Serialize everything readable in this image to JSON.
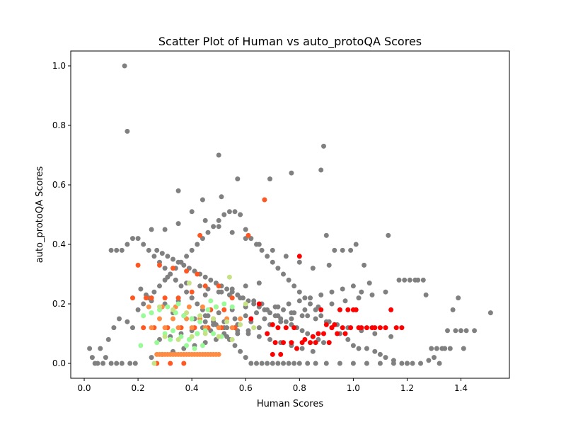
{
  "chart_data": {
    "type": "scatter",
    "title": "Scatter Plot of Human vs auto_protoQA Scores",
    "xlabel": "Human Scores",
    "ylabel": "auto_protoQA Scores",
    "xlim": [
      -0.05,
      1.58
    ],
    "ylim": [
      -0.05,
      1.05
    ],
    "xticks": [
      0.0,
      0.2,
      0.4,
      0.6,
      0.8,
      1.0,
      1.2,
      1.4
    ],
    "xtick_labels": [
      "0.0",
      "0.2",
      "0.4",
      "0.6",
      "0.8",
      "1.0",
      "1.2",
      "1.4"
    ],
    "yticks": [
      0.0,
      0.2,
      0.4,
      0.6,
      0.8,
      1.0
    ],
    "ytick_labels": [
      "0.0",
      "0.2",
      "0.4",
      "0.6",
      "0.8",
      "1.0"
    ],
    "grid": false,
    "legend": null,
    "colors": {
      "gray": "#808080",
      "red": "#ff0000",
      "orange_red": "#ff5722",
      "orange": "#ff8c42",
      "light_green": "#98fb98",
      "yellow_green": "#c5e384"
    },
    "series": [
      {
        "color_key": "gray",
        "x": [
          0.15,
          0.16,
          0.5,
          0.89,
          0.44,
          0.57,
          0.88,
          0.77,
          0.69,
          0.51,
          0.35,
          0.02,
          0.03,
          0.06,
          0.08,
          0.04,
          0.05,
          0.07,
          0.1,
          0.12,
          0.14,
          0.17,
          0.19,
          0.09,
          0.11,
          0.13,
          0.16,
          0.18,
          0.2,
          0.22,
          0.24,
          0.26,
          0.28,
          0.3,
          0.32,
          0.34,
          0.36,
          0.38,
          0.4,
          0.42,
          0.44,
          0.46,
          0.48,
          0.5,
          0.52,
          0.54,
          0.56,
          0.58,
          0.6,
          0.62,
          0.64,
          0.66,
          0.68,
          0.7,
          0.72,
          0.74,
          0.76,
          0.78,
          0.8,
          0.82,
          0.84,
          0.86,
          0.88,
          0.9,
          0.92,
          0.95,
          0.98,
          1.0,
          1.02,
          1.05,
          1.08,
          1.1,
          1.12,
          1.15,
          1.18,
          1.2,
          1.22,
          1.25,
          1.28,
          1.3,
          1.32,
          1.35,
          1.38,
          1.4,
          1.42,
          1.45,
          1.51,
          1.39,
          1.37,
          1.41,
          1.06,
          1.03,
          1.13,
          1.17,
          1.19,
          1.21,
          1.23,
          1.24,
          1.26,
          1.27,
          1.29,
          1.31,
          1.33,
          1.34,
          1.36,
          0.9,
          0.91,
          0.93,
          0.96,
          0.99,
          1.01,
          1.04,
          0.27,
          0.29,
          0.31,
          0.33,
          0.35,
          0.37,
          0.39,
          0.41,
          0.43,
          0.45,
          0.47,
          0.49,
          0.51,
          0.53,
          0.55,
          0.57,
          0.59,
          0.61,
          0.63,
          0.65,
          0.67,
          0.69,
          0.71,
          0.73,
          0.75,
          0.77,
          0.79,
          0.81,
          0.83,
          0.85,
          0.87,
          0.89,
          0.21,
          0.23,
          0.25,
          0.33,
          0.37,
          0.41,
          0.45,
          0.49,
          0.53,
          0.57,
          0.61,
          0.65,
          0.69,
          0.73,
          0.77,
          0.81,
          0.85,
          0.28,
          0.32,
          0.36,
          0.4,
          0.44,
          0.48,
          0.52,
          0.56,
          0.6,
          0.64,
          0.68,
          0.72,
          0.76,
          0.8,
          0.84,
          0.88,
          0.92,
          0.96,
          1.0,
          0.25,
          0.29,
          0.33,
          0.37,
          0.41,
          0.45,
          0.49,
          0.53,
          0.57,
          0.61,
          0.65,
          0.69,
          0.73,
          0.77,
          0.81,
          0.1,
          0.12,
          0.14,
          0.16,
          0.18,
          0.2,
          0.22,
          0.24,
          0.26,
          0.28,
          0.3,
          0.32,
          0.34,
          0.36,
          0.38,
          0.4,
          0.42,
          0.44,
          0.46,
          0.48,
          0.5,
          0.52,
          0.54,
          0.56,
          0.58,
          0.6,
          0.62,
          0.64,
          0.66,
          0.68,
          0.7,
          0.72,
          0.74,
          0.76,
          0.78,
          0.8,
          0.83,
          0.86,
          0.9,
          0.95,
          1.0,
          1.05,
          1.1,
          1.15,
          1.2,
          0.25,
          0.3,
          0.35,
          0.4,
          0.45,
          0.5,
          0.55,
          0.6,
          0.65,
          0.7,
          0.75,
          0.8,
          0.85,
          0.3,
          0.35,
          0.4,
          0.45,
          0.5,
          0.55,
          0.6,
          0.65,
          0.4,
          0.45,
          0.5,
          0.55,
          0.6,
          0.42,
          0.47,
          0.52,
          0.57,
          0.62,
          0.67,
          0.72,
          0.77,
          0.82,
          0.87,
          0.92,
          0.97,
          1.02,
          1.07,
          1.12,
          0.31,
          0.34,
          0.38,
          0.43,
          0.46,
          0.51,
          0.54,
          0.58,
          0.63,
          0.66,
          0.71,
          0.74,
          0.78,
          0.83,
          0.86,
          0.91,
          0.94,
          0.98,
          1.03,
          1.08,
          1.14
        ],
        "y": [
          1.0,
          0.78,
          0.7,
          0.73,
          0.55,
          0.62,
          0.65,
          0.64,
          0.62,
          0.56,
          0.58,
          0.05,
          0.02,
          0.05,
          0.02,
          0.0,
          0.0,
          0.0,
          0.0,
          0.0,
          0.0,
          0.0,
          0.0,
          0.08,
          0.12,
          0.15,
          0.14,
          0.12,
          0.18,
          0.2,
          0.22,
          0.24,
          0.26,
          0.28,
          0.3,
          0.32,
          0.34,
          0.36,
          0.38,
          0.4,
          0.42,
          0.44,
          0.46,
          0.48,
          0.5,
          0.51,
          0.51,
          0.5,
          0.45,
          0.42,
          0.4,
          0.38,
          0.36,
          0.34,
          0.32,
          0.3,
          0.28,
          0.26,
          0.24,
          0.22,
          0.2,
          0.18,
          0.16,
          0.14,
          0.12,
          0.1,
          0.08,
          0.06,
          0.05,
          0.05,
          0.04,
          0.03,
          0.02,
          0.01,
          0.0,
          0.0,
          0.0,
          0.0,
          0.01,
          0.02,
          0.0,
          0.11,
          0.11,
          0.11,
          0.11,
          0.11,
          0.17,
          0.22,
          0.18,
          0.05,
          0.27,
          0.24,
          0.43,
          0.28,
          0.28,
          0.28,
          0.28,
          0.28,
          0.28,
          0.23,
          0.05,
          0.05,
          0.05,
          0.05,
          0.05,
          0.43,
          0.33,
          0.38,
          0.38,
          0.38,
          0.4,
          0.33,
          0.38,
          0.37,
          0.36,
          0.35,
          0.34,
          0.33,
          0.32,
          0.31,
          0.3,
          0.29,
          0.28,
          0.27,
          0.26,
          0.25,
          0.24,
          0.23,
          0.22,
          0.21,
          0.2,
          0.19,
          0.18,
          0.17,
          0.16,
          0.15,
          0.14,
          0.13,
          0.12,
          0.11,
          0.1,
          0.09,
          0.08,
          0.07,
          0.25,
          0.23,
          0.21,
          0.17,
          0.16,
          0.15,
          0.14,
          0.13,
          0.12,
          0.11,
          0.1,
          0.09,
          0.08,
          0.07,
          0.06,
          0.05,
          0.04,
          0.08,
          0.09,
          0.1,
          0.11,
          0.12,
          0.13,
          0.14,
          0.15,
          0.16,
          0.17,
          0.18,
          0.19,
          0.2,
          0.21,
          0.22,
          0.23,
          0.24,
          0.25,
          0.26,
          0.02,
          0.03,
          0.04,
          0.05,
          0.06,
          0.07,
          0.08,
          0.09,
          0.1,
          0.11,
          0.12,
          0.13,
          0.14,
          0.15,
          0.16,
          0.38,
          0.38,
          0.38,
          0.4,
          0.42,
          0.42,
          0.4,
          0.38,
          0.36,
          0.34,
          0.32,
          0.3,
          0.28,
          0.26,
          0.24,
          0.22,
          0.2,
          0.18,
          0.16,
          0.14,
          0.12,
          0.1,
          0.08,
          0.06,
          0.04,
          0.02,
          0.0,
          0.0,
          0.0,
          0.0,
          0.0,
          0.0,
          0.0,
          0.0,
          0.0,
          0.0,
          0.0,
          0.0,
          0.0,
          0.0,
          0.0,
          0.0,
          0.0,
          0.0,
          0.0,
          0.45,
          0.45,
          0.47,
          0.51,
          0.48,
          0.46,
          0.44,
          0.42,
          0.4,
          0.38,
          0.36,
          0.34,
          0.32,
          0.2,
          0.21,
          0.22,
          0.23,
          0.24,
          0.25,
          0.26,
          0.27,
          0.15,
          0.16,
          0.17,
          0.18,
          0.19,
          0.1,
          0.11,
          0.12,
          0.13,
          0.14,
          0.15,
          0.16,
          0.17,
          0.18,
          0.19,
          0.2,
          0.21,
          0.22,
          0.23,
          0.24,
          0.29,
          0.28,
          0.27,
          0.26,
          0.25,
          0.24,
          0.23,
          0.22,
          0.21,
          0.2,
          0.19,
          0.18,
          0.17,
          0.16,
          0.15,
          0.14,
          0.13,
          0.12,
          0.11,
          0.1,
          0.09
        ]
      },
      {
        "color_key": "red",
        "x": [
          0.8,
          0.88,
          0.9,
          0.92,
          0.95,
          0.98,
          1.0,
          1.02,
          1.05,
          1.08,
          1.1,
          1.12,
          1.14,
          1.16,
          1.18,
          0.62,
          0.65,
          0.7,
          0.72,
          0.75,
          0.78,
          0.82,
          0.85,
          0.87,
          0.89,
          0.93,
          0.96,
          0.99,
          1.01,
          1.03,
          1.07,
          0.68,
          0.71,
          0.74,
          0.77,
          0.81,
          0.84,
          0.86,
          0.91,
          0.94,
          0.97,
          0.7,
          0.73,
          0.79
        ],
        "y": [
          0.36,
          0.18,
          0.13,
          0.12,
          0.18,
          0.18,
          0.18,
          0.12,
          0.12,
          0.12,
          0.12,
          0.12,
          0.18,
          0.12,
          0.12,
          0.15,
          0.2,
          0.13,
          0.12,
          0.12,
          0.12,
          0.08,
          0.09,
          0.1,
          0.1,
          0.13,
          0.12,
          0.12,
          0.18,
          0.12,
          0.12,
          0.1,
          0.07,
          0.07,
          0.07,
          0.07,
          0.07,
          0.07,
          0.07,
          0.1,
          0.1,
          0.03,
          0.03,
          0.05
        ]
      },
      {
        "color_key": "orange_red",
        "x": [
          0.67,
          0.61,
          0.43,
          0.2,
          0.18,
          0.23,
          0.25,
          0.3,
          0.35,
          0.4,
          0.45,
          0.5,
          0.55,
          0.28,
          0.33,
          0.38,
          0.42,
          0.47,
          0.52,
          0.22,
          0.26,
          0.31,
          0.36,
          0.41,
          0.46,
          0.51,
          0.56,
          0.27,
          0.32,
          0.37
        ],
        "y": [
          0.55,
          0.43,
          0.43,
          0.33,
          0.22,
          0.22,
          0.22,
          0.22,
          0.22,
          0.24,
          0.26,
          0.26,
          0.22,
          0.33,
          0.32,
          0.31,
          0.3,
          0.18,
          0.18,
          0.12,
          0.12,
          0.12,
          0.12,
          0.12,
          0.12,
          0.12,
          0.12,
          0.0,
          0.0,
          0.0
        ]
      },
      {
        "color_key": "orange",
        "x": [
          0.27,
          0.28,
          0.29,
          0.3,
          0.31,
          0.32,
          0.33,
          0.34,
          0.35,
          0.36,
          0.37,
          0.38,
          0.39,
          0.4,
          0.41,
          0.42,
          0.43,
          0.44,
          0.45,
          0.46,
          0.47,
          0.48,
          0.49,
          0.5,
          0.25,
          0.3,
          0.35,
          0.4,
          0.45,
          0.5,
          0.55,
          0.28,
          0.33,
          0.38,
          0.43,
          0.48,
          0.53,
          0.58,
          0.24,
          0.29,
          0.34,
          0.39,
          0.44,
          0.49
        ],
        "y": [
          0.03,
          0.03,
          0.03,
          0.03,
          0.03,
          0.03,
          0.03,
          0.03,
          0.03,
          0.03,
          0.03,
          0.03,
          0.03,
          0.03,
          0.03,
          0.03,
          0.03,
          0.03,
          0.03,
          0.03,
          0.03,
          0.03,
          0.03,
          0.03,
          0.12,
          0.12,
          0.12,
          0.12,
          0.12,
          0.12,
          0.12,
          0.15,
          0.15,
          0.15,
          0.15,
          0.15,
          0.15,
          0.15,
          0.19,
          0.19,
          0.19,
          0.19,
          0.19,
          0.19
        ]
      },
      {
        "color_key": "light_green",
        "x": [
          0.22,
          0.25,
          0.28,
          0.31,
          0.34,
          0.37,
          0.4,
          0.43,
          0.46,
          0.49,
          0.52,
          0.55,
          0.3,
          0.33,
          0.36,
          0.39,
          0.42,
          0.45,
          0.48,
          0.51,
          0.27,
          0.32,
          0.38,
          0.41,
          0.44,
          0.35,
          0.47,
          0.21
        ],
        "y": [
          0.16,
          0.17,
          0.18,
          0.19,
          0.17,
          0.16,
          0.15,
          0.14,
          0.18,
          0.19,
          0.2,
          0.19,
          0.1,
          0.11,
          0.09,
          0.08,
          0.1,
          0.11,
          0.1,
          0.09,
          0.07,
          0.08,
          0.06,
          0.05,
          0.06,
          0.2,
          0.21,
          0.06
        ]
      },
      {
        "color_key": "yellow_green",
        "x": [
          0.28,
          0.33,
          0.38,
          0.43,
          0.48,
          0.53,
          0.58,
          0.63,
          0.3,
          0.35,
          0.4,
          0.45,
          0.5,
          0.55,
          0.6,
          0.39,
          0.54,
          0.26
        ],
        "y": [
          0.19,
          0.18,
          0.17,
          0.16,
          0.15,
          0.14,
          0.13,
          0.12,
          0.09,
          0.08,
          0.09,
          0.1,
          0.09,
          0.08,
          0.2,
          0.27,
          0.29,
          0.0
        ]
      }
    ]
  }
}
